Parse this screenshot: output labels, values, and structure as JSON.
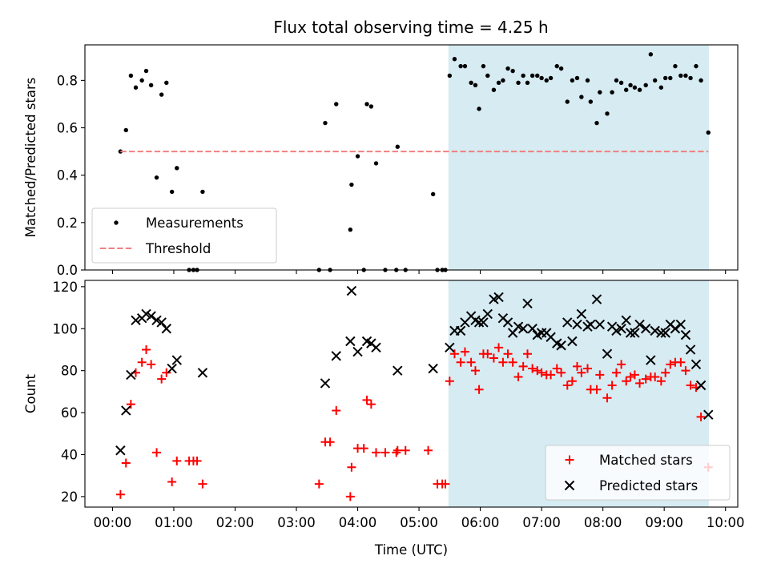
{
  "title": "Flux total observing time = 4.25 h",
  "chart_data": [
    {
      "type": "scatter",
      "panel": "top",
      "title": "Flux total observing time = 4.25 h",
      "xlabel": "",
      "ylabel": "Matched/Predicted stars",
      "xlim": [
        -0.45,
        10.2
      ],
      "ylim": [
        0,
        0.95
      ],
      "yticks": [
        0.0,
        0.2,
        0.4,
        0.6,
        0.8
      ],
      "ytick_labels": [
        "0.0",
        "0.2",
        "0.4",
        "0.6",
        "0.8"
      ],
      "grid": false,
      "legend_position": "lower-left",
      "shaded_region": {
        "x": [
          5.48,
          9.73
        ],
        "color": "#ADD8E6"
      },
      "series": [
        {
          "name": "Measurements",
          "marker": "dot",
          "color": "#000000",
          "points": [
            [
              0.13,
              0.5
            ],
            [
              0.22,
              0.59
            ],
            [
              0.3,
              0.82
            ],
            [
              0.38,
              0.77
            ],
            [
              0.48,
              0.8
            ],
            [
              0.55,
              0.84
            ],
            [
              0.63,
              0.78
            ],
            [
              0.72,
              0.39
            ],
            [
              0.8,
              0.74
            ],
            [
              0.88,
              0.79
            ],
            [
              0.97,
              0.33
            ],
            [
              1.05,
              0.43
            ],
            [
              1.25,
              0.0
            ],
            [
              1.32,
              0.0
            ],
            [
              1.38,
              0.0
            ],
            [
              1.47,
              0.33
            ],
            [
              3.37,
              0.0
            ],
            [
              3.47,
              0.62
            ],
            [
              3.55,
              0.0
            ],
            [
              3.65,
              0.7
            ],
            [
              3.88,
              0.17
            ],
            [
              3.9,
              0.36
            ],
            [
              4.0,
              0.48
            ],
            [
              4.1,
              0.0
            ],
            [
              4.15,
              0.7
            ],
            [
              4.22,
              0.69
            ],
            [
              4.3,
              0.45
            ],
            [
              4.45,
              0.0
            ],
            [
              4.63,
              0.0
            ],
            [
              4.65,
              0.52
            ],
            [
              4.78,
              0.0
            ],
            [
              5.23,
              0.32
            ],
            [
              5.3,
              0.0
            ],
            [
              5.38,
              0.0
            ],
            [
              5.43,
              0.0
            ],
            [
              5.5,
              0.82
            ],
            [
              5.58,
              0.89
            ],
            [
              5.68,
              0.86
            ],
            [
              5.75,
              0.86
            ],
            [
              5.85,
              0.79
            ],
            [
              5.92,
              0.78
            ],
            [
              5.98,
              0.68
            ],
            [
              6.05,
              0.86
            ],
            [
              6.12,
              0.82
            ],
            [
              6.22,
              0.76
            ],
            [
              6.3,
              0.79
            ],
            [
              6.37,
              0.8
            ],
            [
              6.45,
              0.85
            ],
            [
              6.53,
              0.84
            ],
            [
              6.62,
              0.79
            ],
            [
              6.7,
              0.82
            ],
            [
              6.77,
              0.79
            ],
            [
              6.85,
              0.82
            ],
            [
              6.93,
              0.82
            ],
            [
              7.0,
              0.81
            ],
            [
              7.08,
              0.8
            ],
            [
              7.15,
              0.81
            ],
            [
              7.25,
              0.86
            ],
            [
              7.32,
              0.85
            ],
            [
              7.42,
              0.71
            ],
            [
              7.5,
              0.8
            ],
            [
              7.58,
              0.81
            ],
            [
              7.65,
              0.73
            ],
            [
              7.75,
              0.8
            ],
            [
              7.8,
              0.71
            ],
            [
              7.9,
              0.62
            ],
            [
              7.95,
              0.75
            ],
            [
              8.07,
              0.66
            ],
            [
              8.15,
              0.75
            ],
            [
              8.22,
              0.8
            ],
            [
              8.3,
              0.79
            ],
            [
              8.38,
              0.76
            ],
            [
              8.45,
              0.78
            ],
            [
              8.52,
              0.77
            ],
            [
              8.6,
              0.76
            ],
            [
              8.7,
              0.78
            ],
            [
              8.78,
              0.91
            ],
            [
              8.85,
              0.8
            ],
            [
              8.95,
              0.77
            ],
            [
              9.02,
              0.81
            ],
            [
              9.1,
              0.81
            ],
            [
              9.18,
              0.86
            ],
            [
              9.27,
              0.82
            ],
            [
              9.35,
              0.82
            ],
            [
              9.43,
              0.81
            ],
            [
              9.52,
              0.86
            ],
            [
              9.6,
              0.8
            ],
            [
              9.72,
              0.58
            ]
          ]
        },
        {
          "name": "Threshold",
          "marker": "dashed-line",
          "color": "#F08080",
          "points": [
            [
              0.13,
              0.5
            ],
            [
              9.72,
              0.5
            ]
          ]
        }
      ]
    },
    {
      "type": "scatter",
      "panel": "bottom",
      "title": "",
      "xlabel": "Time (UTC)",
      "ylabel": "Count",
      "xlim": [
        -0.45,
        10.2
      ],
      "ylim": [
        15,
        123
      ],
      "yticks": [
        20,
        40,
        60,
        80,
        100,
        120
      ],
      "ytick_labels": [
        "20",
        "40",
        "60",
        "80",
        "100",
        "120"
      ],
      "xticks": [
        0,
        1,
        2,
        3,
        4,
        5,
        6,
        7,
        8,
        9,
        10
      ],
      "xtick_labels": [
        "00:00",
        "01:00",
        "02:00",
        "03:00",
        "04:00",
        "05:00",
        "06:00",
        "07:00",
        "08:00",
        "09:00",
        "10:00"
      ],
      "grid": false,
      "legend_position": "lower-right",
      "shaded_region": {
        "x": [
          5.48,
          9.73
        ],
        "color": "#ADD8E6"
      },
      "series": [
        {
          "name": "Matched stars",
          "marker": "plus",
          "color": "#FF0000",
          "points": [
            [
              0.13,
              21
            ],
            [
              0.22,
              36
            ],
            [
              0.3,
              64
            ],
            [
              0.38,
              79
            ],
            [
              0.48,
              84
            ],
            [
              0.55,
              90
            ],
            [
              0.63,
              83
            ],
            [
              0.72,
              41
            ],
            [
              0.8,
              76
            ],
            [
              0.88,
              79
            ],
            [
              0.97,
              27
            ],
            [
              1.05,
              37
            ],
            [
              1.25,
              37
            ],
            [
              1.32,
              37
            ],
            [
              1.38,
              37
            ],
            [
              1.47,
              26
            ],
            [
              3.37,
              26
            ],
            [
              3.47,
              46
            ],
            [
              3.55,
              46
            ],
            [
              3.65,
              61
            ],
            [
              3.88,
              20
            ],
            [
              3.9,
              34
            ],
            [
              4.0,
              43
            ],
            [
              4.1,
              43
            ],
            [
              4.15,
              66
            ],
            [
              4.22,
              64
            ],
            [
              4.3,
              41
            ],
            [
              4.45,
              41
            ],
            [
              4.63,
              41
            ],
            [
              4.65,
              42
            ],
            [
              4.78,
              42
            ],
            [
              5.15,
              42
            ],
            [
              5.3,
              26
            ],
            [
              5.38,
              26
            ],
            [
              5.43,
              26
            ],
            [
              5.5,
              75
            ],
            [
              5.58,
              88
            ],
            [
              5.68,
              84
            ],
            [
              5.75,
              89
            ],
            [
              5.85,
              84
            ],
            [
              5.92,
              80
            ],
            [
              5.98,
              71
            ],
            [
              6.05,
              88
            ],
            [
              6.12,
              88
            ],
            [
              6.22,
              86
            ],
            [
              6.3,
              91
            ],
            [
              6.37,
              84
            ],
            [
              6.45,
              88
            ],
            [
              6.53,
              84
            ],
            [
              6.62,
              77
            ],
            [
              6.7,
              82
            ],
            [
              6.77,
              88
            ],
            [
              6.85,
              81
            ],
            [
              6.93,
              80
            ],
            [
              7.0,
              79
            ],
            [
              7.08,
              78
            ],
            [
              7.15,
              78
            ],
            [
              7.25,
              81
            ],
            [
              7.32,
              79
            ],
            [
              7.42,
              73
            ],
            [
              7.5,
              75
            ],
            [
              7.58,
              82
            ],
            [
              7.65,
              79
            ],
            [
              7.75,
              81
            ],
            [
              7.8,
              71
            ],
            [
              7.9,
              71
            ],
            [
              7.95,
              78
            ],
            [
              8.07,
              67
            ],
            [
              8.15,
              73
            ],
            [
              8.22,
              79
            ],
            [
              8.3,
              83
            ],
            [
              8.38,
              75
            ],
            [
              8.45,
              77
            ],
            [
              8.52,
              78
            ],
            [
              8.6,
              74
            ],
            [
              8.7,
              76
            ],
            [
              8.78,
              77
            ],
            [
              8.85,
              77
            ],
            [
              8.95,
              75
            ],
            [
              9.02,
              79
            ],
            [
              9.1,
              83
            ],
            [
              9.18,
              84
            ],
            [
              9.27,
              84
            ],
            [
              9.35,
              80
            ],
            [
              9.43,
              73
            ],
            [
              9.52,
              72
            ],
            [
              9.6,
              58
            ],
            [
              9.72,
              34
            ]
          ]
        },
        {
          "name": "Predicted stars",
          "marker": "x",
          "color": "#000000",
          "points": [
            [
              0.13,
              42
            ],
            [
              0.22,
              61
            ],
            [
              0.3,
              78
            ],
            [
              0.38,
              104
            ],
            [
              0.48,
              105
            ],
            [
              0.55,
              107
            ],
            [
              0.63,
              106
            ],
            [
              0.72,
              104
            ],
            [
              0.8,
              103
            ],
            [
              0.88,
              100
            ],
            [
              0.97,
              81
            ],
            [
              1.05,
              85
            ],
            [
              1.47,
              79
            ],
            [
              3.47,
              74
            ],
            [
              3.65,
              87
            ],
            [
              3.88,
              94
            ],
            [
              3.9,
              118
            ],
            [
              4.0,
              89
            ],
            [
              4.15,
              94
            ],
            [
              4.22,
              93
            ],
            [
              4.3,
              91
            ],
            [
              4.65,
              80
            ],
            [
              5.23,
              81
            ],
            [
              5.5,
              91
            ],
            [
              5.58,
              99
            ],
            [
              5.68,
              99
            ],
            [
              5.75,
              103
            ],
            [
              5.85,
              106
            ],
            [
              5.92,
              104
            ],
            [
              5.98,
              103
            ],
            [
              6.05,
              103
            ],
            [
              6.12,
              107
            ],
            [
              6.22,
              114
            ],
            [
              6.3,
              115
            ],
            [
              6.37,
              105
            ],
            [
              6.45,
              103
            ],
            [
              6.53,
              98
            ],
            [
              6.62,
              101
            ],
            [
              6.7,
              100
            ],
            [
              6.77,
              112
            ],
            [
              6.85,
              100
            ],
            [
              6.93,
              97
            ],
            [
              7.0,
              98
            ],
            [
              7.08,
              98
            ],
            [
              7.15,
              96
            ],
            [
              7.25,
              93
            ],
            [
              7.32,
              92
            ],
            [
              7.42,
              103
            ],
            [
              7.5,
              94
            ],
            [
              7.58,
              102
            ],
            [
              7.65,
              107
            ],
            [
              7.75,
              101
            ],
            [
              7.8,
              102
            ],
            [
              7.9,
              114
            ],
            [
              7.95,
              102
            ],
            [
              8.07,
              88
            ],
            [
              8.15,
              101
            ],
            [
              8.22,
              99
            ],
            [
              8.3,
              100
            ],
            [
              8.38,
              104
            ],
            [
              8.45,
              98
            ],
            [
              8.52,
              98
            ],
            [
              8.6,
              102
            ],
            [
              8.7,
              100
            ],
            [
              8.78,
              85
            ],
            [
              8.85,
              99
            ],
            [
              8.95,
              98
            ],
            [
              9.02,
              98
            ],
            [
              9.1,
              102
            ],
            [
              9.18,
              100
            ],
            [
              9.27,
              102
            ],
            [
              9.35,
              97
            ],
            [
              9.43,
              90
            ],
            [
              9.52,
              83
            ],
            [
              9.6,
              73
            ],
            [
              9.72,
              59
            ]
          ]
        }
      ]
    }
  ]
}
